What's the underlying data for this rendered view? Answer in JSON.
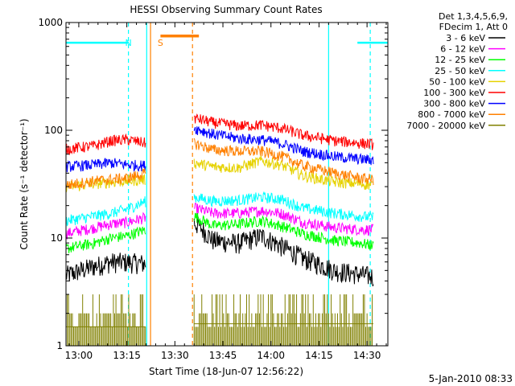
{
  "chart_data": {
    "type": "line",
    "title": "HESSI Observing Summary Count Rates",
    "xlabel": "Start Time (18-Jun-07 12:56:22)",
    "ylabel": "Count Rate (s⁻¹ detector⁻¹)",
    "ylog": true,
    "ylim": [
      1,
      1000
    ],
    "x_ticks": [
      "13:00",
      "13:15",
      "13:30",
      "13:45",
      "14:00",
      "14:15",
      "14:30"
    ],
    "y_ticks": [
      "1",
      "10",
      "100",
      "1000"
    ],
    "xlim_minutes": [
      -4.0,
      96.5
    ],
    "legend_header": [
      "Det 1,3,4,5,6,9,",
      "FDecim 1, Att 0"
    ],
    "legend_position": "outside-right",
    "date_stamp": "5-Jan-2010 08:33",
    "series": [
      {
        "name": "3 - 6 keV",
        "color": "#000000",
        "seg1": [
          [
            -4,
            4.5
          ],
          [
            5,
            5.5
          ],
          [
            10,
            6.0
          ],
          [
            15,
            6.0
          ],
          [
            21,
            5.8
          ]
        ],
        "seg2": [
          [
            36,
            14
          ],
          [
            42,
            9.5
          ],
          [
            50,
            9
          ],
          [
            57,
            10.5
          ],
          [
            63,
            8.5
          ],
          [
            70,
            6.5
          ],
          [
            80,
            5.0
          ],
          [
            88,
            4.6
          ],
          [
            92,
            4.4
          ]
        ]
      },
      {
        "name": "6 - 12 keV",
        "color": "#ff00ff",
        "seg1": [
          [
            -4,
            11
          ],
          [
            5,
            12.5
          ],
          [
            10,
            13.5
          ],
          [
            15,
            14
          ],
          [
            21,
            15.5
          ]
        ],
        "seg2": [
          [
            36,
            19
          ],
          [
            42,
            17
          ],
          [
            50,
            17
          ],
          [
            57,
            18
          ],
          [
            63,
            17
          ],
          [
            70,
            14
          ],
          [
            80,
            12.5
          ],
          [
            88,
            12
          ],
          [
            92,
            12
          ]
        ]
      },
      {
        "name": "12 - 25 keV",
        "color": "#00ff00",
        "seg1": [
          [
            -4,
            8
          ],
          [
            5,
            9
          ],
          [
            10,
            10
          ],
          [
            15,
            10.5
          ],
          [
            21,
            12
          ]
        ],
        "seg2": [
          [
            36,
            16
          ],
          [
            42,
            13
          ],
          [
            50,
            13.5
          ],
          [
            57,
            14.5
          ],
          [
            63,
            13
          ],
          [
            70,
            11
          ],
          [
            80,
            9.5
          ],
          [
            88,
            9
          ],
          [
            92,
            8.5
          ]
        ]
      },
      {
        "name": "25 - 50 keV",
        "color": "#00ffff",
        "seg1": [
          [
            -4,
            14.5
          ],
          [
            5,
            16
          ],
          [
            10,
            17
          ],
          [
            15,
            18.5
          ],
          [
            21,
            22
          ]
        ],
        "seg2": [
          [
            36,
            24
          ],
          [
            42,
            22
          ],
          [
            50,
            22.5
          ],
          [
            57,
            24
          ],
          [
            63,
            23
          ],
          [
            70,
            19
          ],
          [
            80,
            17
          ],
          [
            88,
            16
          ],
          [
            92,
            15.5
          ]
        ]
      },
      {
        "name": "50 - 100 keV",
        "color": "#e6d200",
        "seg1": [
          [
            -4,
            30
          ],
          [
            5,
            32
          ],
          [
            10,
            33
          ],
          [
            15,
            34
          ],
          [
            21,
            35
          ]
        ],
        "seg2": [
          [
            36,
            50
          ],
          [
            42,
            46
          ],
          [
            50,
            45
          ],
          [
            57,
            52
          ],
          [
            63,
            48
          ],
          [
            70,
            38
          ],
          [
            80,
            33
          ],
          [
            88,
            32
          ],
          [
            92,
            31
          ]
        ]
      },
      {
        "name": "100 - 300 keV",
        "color": "#ff0000",
        "seg1": [
          [
            -4,
            67
          ],
          [
            5,
            72
          ],
          [
            10,
            80
          ],
          [
            15,
            82
          ],
          [
            21,
            76
          ]
        ],
        "seg2": [
          [
            36,
            130
          ],
          [
            42,
            118
          ],
          [
            50,
            110
          ],
          [
            57,
            112
          ],
          [
            63,
            105
          ],
          [
            70,
            90
          ],
          [
            80,
            80
          ],
          [
            88,
            76
          ],
          [
            92,
            74
          ]
        ]
      },
      {
        "name": "300 - 800 keV",
        "color": "#0000ff",
        "seg1": [
          [
            -4,
            46
          ],
          [
            5,
            48
          ],
          [
            10,
            50
          ],
          [
            15,
            48
          ],
          [
            21,
            47
          ]
        ],
        "seg2": [
          [
            36,
            105
          ],
          [
            42,
            92
          ],
          [
            50,
            84
          ],
          [
            57,
            82
          ],
          [
            63,
            76
          ],
          [
            70,
            64
          ],
          [
            80,
            57
          ],
          [
            88,
            54
          ],
          [
            92,
            53
          ]
        ]
      },
      {
        "name": "800 - 7000 keV",
        "color": "#ff8000",
        "seg1": [
          [
            -4,
            31
          ],
          [
            5,
            34
          ],
          [
            10,
            35
          ],
          [
            15,
            36
          ],
          [
            21,
            40
          ]
        ],
        "seg2": [
          [
            36,
            76
          ],
          [
            42,
            66
          ],
          [
            50,
            64
          ],
          [
            57,
            64
          ],
          [
            63,
            58
          ],
          [
            70,
            47
          ],
          [
            80,
            40
          ],
          [
            88,
            36
          ],
          [
            92,
            35
          ]
        ]
      },
      {
        "name": "7000 - 20000 keV",
        "color": "#808000",
        "seg1": [
          [
            -4,
            1.5
          ],
          [
            21,
            1.5
          ]
        ],
        "seg2": [
          [
            36,
            1.6
          ],
          [
            92,
            1.6
          ]
        ]
      }
    ],
    "annotations": [
      {
        "text": "N",
        "color": "#00ffff",
        "x": 15.5
      },
      {
        "text": "S",
        "color": "#ff8000",
        "x": 25.5
      }
    ],
    "markers": [
      {
        "kind": "night",
        "color": "#00ffff",
        "y": 650,
        "ranges": [
          [
            -4,
            15.5
          ],
          [
            87,
            96.5
          ]
        ]
      },
      {
        "kind": "saa",
        "color": "#ff8000",
        "y": 750,
        "ranges": [
          [
            25.5,
            37.5
          ]
        ]
      }
    ],
    "vlines": [
      {
        "color": "#00ffff",
        "x": 21.2,
        "style": "solid"
      },
      {
        "color": "#00ffff",
        "x": 15.5,
        "style": "dashed"
      },
      {
        "color": "#ff8000",
        "x": 22.4,
        "style": "solid"
      },
      {
        "color": "#ff8000",
        "x": 35.5,
        "style": "dashed"
      },
      {
        "color": "#00ffff",
        "x": 78.0,
        "style": "solid"
      },
      {
        "color": "#00ffff",
        "x": 91.0,
        "style": "dashed"
      }
    ]
  }
}
